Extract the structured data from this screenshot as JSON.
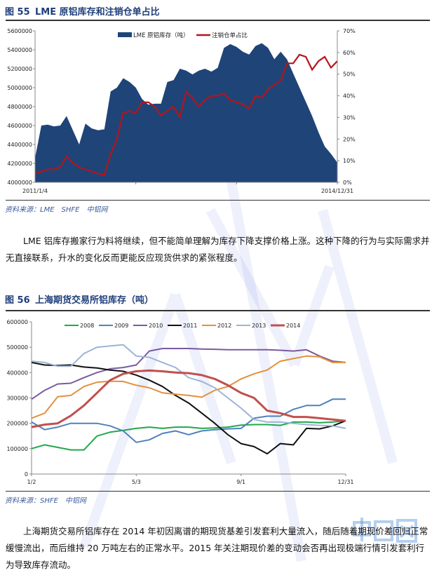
{
  "figure55": {
    "number": "图 55",
    "title": "LME 原铝库存和注销仓单占比",
    "source": "资料来源：LME　SHFE　中铝网"
  },
  "paragraph1": "LME 铝库存搬家行为料将继续，但不能简单理解为库存下降支撑价格上涨。这种下降的行为与实际需求并无直接联系，升水的变化反而更能反应现货供求的紧张程度。",
  "figure56": {
    "number": "图 56",
    "title": "上海期货交易所铝库存（吨）",
    "source": "资料来源：SHFE　中铝网"
  },
  "paragraph2": "上海期货交易所铝库存在 2014 年初因离谱的期现货基差引发套利大量流入，随后随着期现价差回归正常缓慢流出，而后维持 20 万吨左右的正常水平。2015 年关注期现价差的变动会否再出现极端行情引发套利行为导致库存流动。",
  "watermark": "中铝网",
  "chart_data": [
    {
      "type": "area+line",
      "x_start_label": "2011/1/4",
      "x_end_label": "2014/12/31",
      "x": [
        "2011-01",
        "2011-02",
        "2011-03",
        "2011-04",
        "2011-05",
        "2011-06",
        "2011-07",
        "2011-08",
        "2011-09",
        "2011-10",
        "2011-11",
        "2011-12",
        "2012-01",
        "2012-02",
        "2012-03",
        "2012-04",
        "2012-05",
        "2012-06",
        "2012-07",
        "2012-08",
        "2012-09",
        "2012-10",
        "2012-11",
        "2012-12",
        "2013-01",
        "2013-02",
        "2013-03",
        "2013-04",
        "2013-05",
        "2013-06",
        "2013-07",
        "2013-08",
        "2013-09",
        "2013-10",
        "2013-11",
        "2013-12",
        "2014-01",
        "2014-02",
        "2014-03",
        "2014-04",
        "2014-05",
        "2014-06",
        "2014-07",
        "2014-08",
        "2014-09",
        "2014-10",
        "2014-11",
        "2014-12",
        "2014-12-31"
      ],
      "left_axis": {
        "min": 4000000,
        "max": 5600000,
        "ticks": [
          "4000000",
          "4200000",
          "4400000",
          "4600000",
          "4800000",
          "5000000",
          "5200000",
          "5400000",
          "5600000"
        ]
      },
      "right_axis": {
        "min": 0,
        "max": 70,
        "unit": "%",
        "ticks": [
          "0%",
          "10%",
          "20%",
          "30%",
          "40%",
          "50%",
          "60%",
          "70%"
        ]
      },
      "legend_position": "top",
      "grid": false,
      "series": [
        {
          "name": "LME 原铝库存（吨）",
          "type": "area",
          "axis": "left",
          "color": "#1f4478",
          "values": [
            4260000,
            4600000,
            4610000,
            4590000,
            4600000,
            4700000,
            4550000,
            4400000,
            4620000,
            4570000,
            4550000,
            4560000,
            4960000,
            5000000,
            5100000,
            5060000,
            5000000,
            4880000,
            4820000,
            4830000,
            4830000,
            5060000,
            5080000,
            5200000,
            5180000,
            5140000,
            5180000,
            5200000,
            5170000,
            5210000,
            5420000,
            5460000,
            5430000,
            5380000,
            5350000,
            5440000,
            5470000,
            5420000,
            5300000,
            5380000,
            5300000,
            5150000,
            5000000,
            4850000,
            4700000,
            4530000,
            4380000,
            4300000,
            4210000
          ]
        },
        {
          "name": "注销仓单占比",
          "type": "line",
          "axis": "right",
          "color": "#b3151b",
          "values": [
            4,
            5,
            6,
            6,
            7,
            12,
            9,
            7,
            6,
            5,
            4,
            3.5,
            13,
            20,
            32,
            33,
            32,
            37,
            37,
            35,
            31,
            33,
            35,
            30,
            42,
            39,
            35,
            38,
            40,
            40,
            41,
            38,
            37,
            36,
            34,
            40,
            39,
            43,
            45,
            47,
            55,
            55,
            59,
            58,
            52,
            56,
            58,
            53,
            56
          ]
        }
      ]
    },
    {
      "type": "line",
      "x": [
        "1/2",
        "1/17",
        "2/1",
        "2/16",
        "3/3",
        "3/18",
        "4/2",
        "4/17",
        "5/3",
        "5/18",
        "6/2",
        "6/17",
        "7/2",
        "7/17",
        "8/1",
        "8/16",
        "9/1",
        "9/16",
        "10/1",
        "10/16",
        "10/31",
        "11/15",
        "11/30",
        "12/15",
        "12/31"
      ],
      "x_tick_labels": [
        "1/2",
        "5/3",
        "9/1",
        "12/31"
      ],
      "ylim": [
        0,
        600000
      ],
      "y_ticks": [
        "0",
        "100000",
        "200000",
        "300000",
        "400000",
        "500000",
        "600000"
      ],
      "legend_position": "top",
      "grid": false,
      "series": [
        {
          "name": "2008",
          "color": "#22a84a",
          "values": [
            100000,
            115000,
            105000,
            95000,
            95000,
            150000,
            165000,
            172000,
            180000,
            185000,
            180000,
            185000,
            185000,
            180000,
            182000,
            185000,
            193000,
            195000,
            195000,
            192000,
            205000,
            205000,
            202000,
            205000,
            210000
          ]
        },
        {
          "name": "2009",
          "color": "#4f81bd",
          "values": [
            205000,
            175000,
            185000,
            200000,
            200000,
            200000,
            190000,
            170000,
            125000,
            135000,
            160000,
            170000,
            155000,
            170000,
            175000,
            178000,
            180000,
            220000,
            228000,
            228000,
            255000,
            270000,
            270000,
            295000,
            295000
          ]
        },
        {
          "name": "2010",
          "color": "#7a5a9e",
          "values": [
            295000,
            330000,
            355000,
            358000,
            380000,
            400000,
            415000,
            420000,
            430000,
            485000,
            495000,
            495000,
            495000,
            493000,
            492000,
            490000,
            490000,
            490000,
            490000,
            488000,
            485000,
            490000,
            465000,
            445000,
            440000
          ]
        },
        {
          "name": "2011",
          "color": "#111111",
          "values": [
            440000,
            430000,
            428000,
            430000,
            422000,
            418000,
            410000,
            405000,
            390000,
            370000,
            345000,
            310000,
            280000,
            240000,
            200000,
            155000,
            120000,
            108000,
            80000,
            120000,
            115000,
            180000,
            178000,
            190000,
            210000
          ]
        },
        {
          "name": "2012",
          "color": "#e2913e",
          "values": [
            220000,
            240000,
            305000,
            310000,
            345000,
            362000,
            366000,
            365000,
            350000,
            340000,
            320000,
            315000,
            310000,
            303000,
            330000,
            345000,
            375000,
            395000,
            410000,
            445000,
            455000,
            465000,
            462000,
            440000,
            440000
          ]
        },
        {
          "name": "2013",
          "color": "#9db4d6",
          "values": [
            445000,
            440000,
            425000,
            425000,
            475000,
            500000,
            505000,
            510000,
            465000,
            460000,
            440000,
            420000,
            380000,
            365000,
            340000,
            300000,
            260000,
            215000,
            205000,
            205000,
            200000,
            195000,
            192000,
            190000,
            180000
          ]
        },
        {
          "name": "2014",
          "color": "#c0504d",
          "values": [
            185000,
            195000,
            200000,
            230000,
            270000,
            320000,
            370000,
            395000,
            405000,
            408000,
            405000,
            400000,
            398000,
            390000,
            375000,
            350000,
            320000,
            300000,
            250000,
            240000,
            225000,
            225000,
            220000,
            215000,
            210000
          ]
        }
      ]
    }
  ]
}
